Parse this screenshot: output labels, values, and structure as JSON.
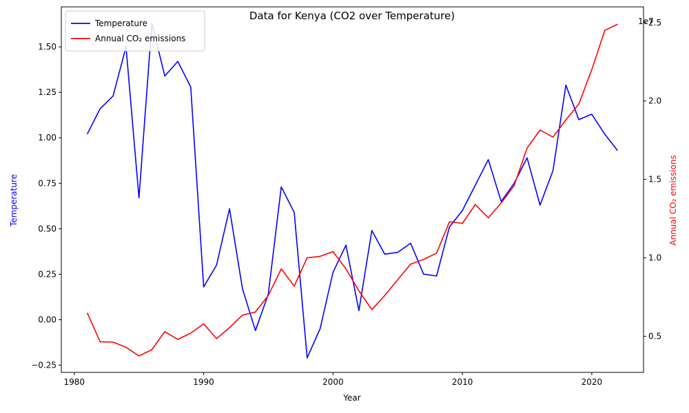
{
  "chart_data": {
    "type": "line",
    "title": "Data for Kenya (CO2 over Temperature)",
    "xlabel": "Year",
    "ylabel_left": "Temperature",
    "ylabel_right": "Annual CO₂ emissions",
    "right_axis_multiplier": "1e7",
    "xlim": [
      1979,
      2024
    ],
    "ylim_left": [
      -0.29,
      1.72
    ],
    "ylim_right": [
      2700000,
      26000000
    ],
    "x_ticks": [
      1980,
      1990,
      2000,
      2010,
      2020
    ],
    "y_left_ticks": [
      -0.25,
      0.0,
      0.25,
      0.5,
      0.75,
      1.0,
      1.25,
      1.5
    ],
    "y_left_tick_labels": [
      "−0.25",
      "0.00",
      "0.25",
      "0.50",
      "0.75",
      "1.00",
      "1.25",
      "1.50"
    ],
    "y_right_ticks": [
      5000000,
      10000000,
      15000000,
      20000000,
      25000000
    ],
    "y_right_tick_labels": [
      "0.5",
      "1.0",
      "1.5",
      "2.0",
      "2.5"
    ],
    "legend_position": "top-left",
    "grid": false,
    "x": [
      1981,
      1982,
      1983,
      1984,
      1985,
      1986,
      1987,
      1988,
      1989,
      1990,
      1991,
      1992,
      1993,
      1994,
      1995,
      1996,
      1997,
      1998,
      1999,
      2000,
      2001,
      2002,
      2003,
      2004,
      2005,
      2006,
      2007,
      2008,
      2009,
      2010,
      2011,
      2012,
      2013,
      2014,
      2015,
      2016,
      2017,
      2018,
      2019,
      2020,
      2021,
      2022
    ],
    "series": [
      {
        "name": "Temperature",
        "color": "#0000ff",
        "axis": "left",
        "values": [
          1.02,
          1.16,
          1.23,
          1.5,
          0.67,
          1.63,
          1.34,
          1.42,
          1.28,
          0.18,
          0.3,
          0.61,
          0.17,
          -0.06,
          0.14,
          0.73,
          0.59,
          -0.21,
          -0.05,
          0.26,
          0.41,
          0.05,
          0.49,
          0.36,
          0.37,
          0.42,
          0.25,
          0.24,
          0.51,
          0.6,
          0.74,
          0.88,
          0.65,
          0.75,
          0.89,
          0.63,
          0.82,
          1.29,
          1.1,
          1.13,
          1.02,
          0.93
        ]
      },
      {
        "name": "Annual CO₂ emissions",
        "color": "#ff0000",
        "axis": "right",
        "values": [
          6500000,
          4650000,
          4630000,
          4300000,
          3750000,
          4150000,
          5300000,
          4800000,
          5200000,
          5800000,
          4850000,
          5550000,
          6350000,
          6550000,
          7600000,
          9300000,
          8200000,
          10000000,
          10100000,
          10400000,
          9300000,
          7900000,
          6700000,
          7600000,
          8600000,
          9600000,
          9900000,
          10300000,
          12300000,
          12200000,
          13400000,
          12550000,
          13500000,
          14600000,
          17000000,
          18150000,
          17700000,
          18800000,
          19800000,
          22000000,
          24500000,
          24900000
        ]
      }
    ]
  }
}
